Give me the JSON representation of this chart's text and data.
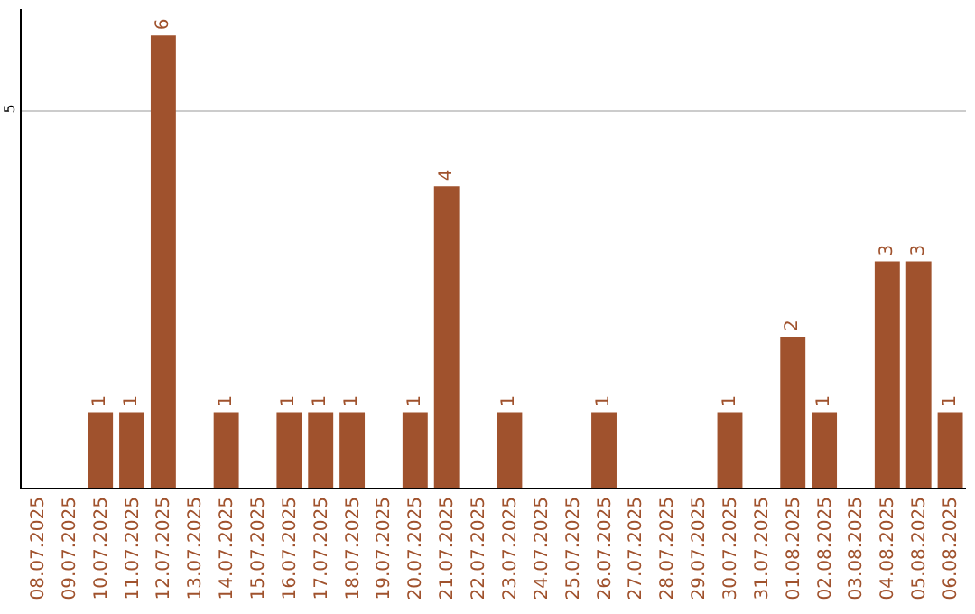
{
  "chart_data": {
    "type": "bar",
    "categories": [
      "08.07.2025",
      "09.07.2025",
      "10.07.2025",
      "11.07.2025",
      "12.07.2025",
      "13.07.2025",
      "14.07.2025",
      "15.07.2025",
      "16.07.2025",
      "17.07.2025",
      "18.07.2025",
      "19.07.2025",
      "20.07.2025",
      "21.07.2025",
      "22.07.2025",
      "23.07.2025",
      "24.07.2025",
      "25.07.2025",
      "26.07.2025",
      "27.07.2025",
      "28.07.2025",
      "29.07.2025",
      "30.07.2025",
      "31.07.2025",
      "01.08.2025",
      "02.08.2025",
      "03.08.2025",
      "04.08.2025",
      "05.08.2025",
      "06.08.2025"
    ],
    "values": [
      0,
      0,
      1,
      1,
      6,
      0,
      1,
      0,
      1,
      1,
      1,
      0,
      1,
      4,
      0,
      1,
      0,
      0,
      1,
      0,
      0,
      0,
      1,
      0,
      2,
      1,
      0,
      3,
      3,
      1
    ],
    "value_labels": [
      null,
      null,
      "1",
      "1",
      "6",
      null,
      "1",
      null,
      "1",
      "1",
      "1",
      null,
      "1",
      "4",
      null,
      "1",
      null,
      null,
      "1",
      null,
      null,
      null,
      "1",
      null,
      "2",
      "1",
      null,
      "3",
      "3",
      "1"
    ],
    "color": "#a0522d",
    "ylim": [
      0,
      6.35
    ],
    "yticks": [
      5
    ],
    "grid": "y",
    "legend": false
  }
}
